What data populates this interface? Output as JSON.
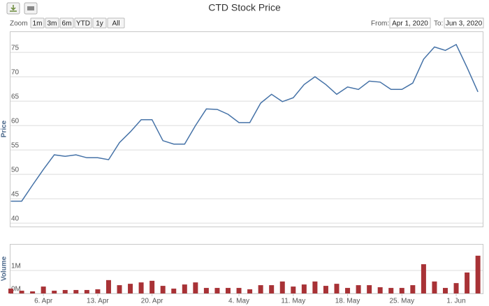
{
  "range_selector": {
    "zoom_label": "Zoom",
    "buttons": [
      "1m",
      "3m",
      "6m",
      "YTD",
      "1y",
      "All"
    ],
    "from_label": "From:",
    "from": "Apr 1, 2020",
    "to_label": "To:",
    "to": "Jun 3, 2020"
  },
  "chart_data": [
    {
      "type": "line",
      "title": "CTD Stock Price",
      "ylabel": "Price",
      "color": "#4572a7",
      "values": [
        44.5,
        44.5,
        47.8,
        51,
        54,
        53.7,
        54,
        53.4,
        53.4,
        53,
        56.5,
        58.7,
        61.2,
        61.2,
        56.9,
        56.2,
        56.2,
        60,
        63.4,
        63.3,
        62.3,
        60.6,
        60.6,
        64.6,
        66.4,
        64.9,
        65.7,
        68.4,
        70,
        68.4,
        66.4,
        67.9,
        67.4,
        69.1,
        68.9,
        67.4,
        67.4,
        68.7,
        73.6,
        76.1,
        75.4,
        76.6,
        71.9,
        66.9
      ],
      "ylim": [
        39.3,
        79.3
      ],
      "yticks": [
        40,
        45,
        50,
        55,
        60,
        65,
        70,
        75
      ],
      "grid": true
    },
    {
      "type": "bar",
      "ylabel": "Volume",
      "color": "#a83236",
      "categories": [
        null,
        null,
        null,
        "6. Apr",
        null,
        null,
        null,
        null,
        "13. Apr",
        null,
        null,
        null,
        null,
        "20. Apr",
        null,
        null,
        null,
        null,
        null,
        null,
        null,
        "4. May",
        null,
        null,
        null,
        null,
        "11. May",
        null,
        null,
        null,
        null,
        "18. May",
        null,
        null,
        null,
        null,
        "25. May",
        null,
        null,
        null,
        null,
        "1. Jun",
        null,
        null
      ],
      "values": [
        210000,
        120000,
        90000,
        300000,
        120000,
        150000,
        150000,
        150000,
        180000,
        580000,
        360000,
        420000,
        480000,
        550000,
        330000,
        210000,
        390000,
        480000,
        240000,
        240000,
        240000,
        240000,
        180000,
        360000,
        360000,
        520000,
        300000,
        390000,
        520000,
        330000,
        420000,
        240000,
        360000,
        360000,
        270000,
        240000,
        240000,
        360000,
        1270000,
        520000,
        240000,
        450000,
        910000,
        1640000
      ],
      "ylim": [
        0,
        2150000
      ],
      "yticks": [
        {
          "value": 0,
          "label": "0M"
        },
        {
          "value": 1000000,
          "label": "1M"
        }
      ],
      "grid": true
    }
  ]
}
